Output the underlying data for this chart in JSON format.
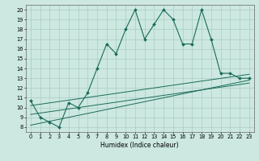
{
  "xlabel": "Humidex (Indice chaleur)",
  "bg_color": "#cce8e0",
  "line_color": "#1a6b5a",
  "grid_color": "#aaccc4",
  "xlim": [
    -0.5,
    23.5
  ],
  "ylim": [
    7.5,
    20.5
  ],
  "yticks": [
    8,
    9,
    10,
    11,
    12,
    13,
    14,
    15,
    16,
    17,
    18,
    19,
    20
  ],
  "xticks": [
    0,
    1,
    2,
    3,
    4,
    5,
    6,
    7,
    8,
    9,
    10,
    11,
    12,
    13,
    14,
    15,
    16,
    17,
    18,
    19,
    20,
    21,
    22,
    23
  ],
  "main_x": [
    0,
    1,
    2,
    3,
    4,
    5,
    6,
    7,
    8,
    9,
    10,
    11,
    12,
    13,
    14,
    15,
    16,
    17,
    18,
    19,
    20,
    21,
    22,
    23
  ],
  "main_y": [
    10.7,
    9.0,
    8.5,
    8.0,
    10.5,
    10.0,
    11.5,
    14.0,
    16.5,
    15.5,
    18.0,
    20.0,
    17.0,
    18.5,
    20.0,
    19.0,
    16.5,
    16.5,
    20.0,
    17.0,
    13.5,
    13.5,
    13.0,
    13.0
  ],
  "trend1_x": [
    0,
    23
  ],
  "trend1_y": [
    8.2,
    12.8
  ],
  "trend2_x": [
    0,
    23
  ],
  "trend2_y": [
    9.3,
    12.5
  ],
  "trend3_x": [
    0,
    23
  ],
  "trend3_y": [
    10.2,
    13.4
  ]
}
